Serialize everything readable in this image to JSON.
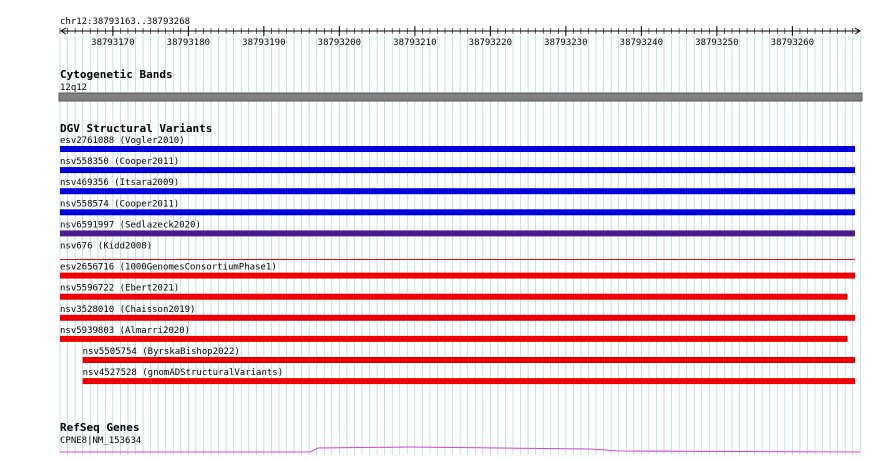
{
  "locus": "chr12:38793163..38793268",
  "ruler": {
    "ticks": [
      38793170,
      38793180,
      38793190,
      38793200,
      38793210,
      38793220,
      38793230,
      38793240,
      38793250,
      38793260
    ]
  },
  "tracks": {
    "cytoband": {
      "title": "Cytogenetic Bands",
      "band": "12q12",
      "color": "#808080"
    },
    "dgv": {
      "title": "DGV Structural Variants",
      "features": [
        {
          "label": "esv2761088 (Vogler2010)",
          "color": "#0000dd",
          "start": 38793163,
          "end": 38793268
        },
        {
          "label": "nsv558350 (Cooper2011)",
          "color": "#0000dd",
          "start": 38793163,
          "end": 38793268
        },
        {
          "label": "nsv469356 (Itsara2009)",
          "color": "#0000dd",
          "start": 38793163,
          "end": 38793268
        },
        {
          "label": "nsv558574 (Cooper2011)",
          "color": "#0000dd",
          "start": 38793163,
          "end": 38793268
        },
        {
          "label": "nsv6591997 (Sedlazeck2020)",
          "color": "#4b1a8f",
          "start": 38793163,
          "end": 38793268
        },
        {
          "label": "nsv676 (Kidd2008)",
          "color": "#ee0000",
          "start": 38793163,
          "end": 38793268,
          "thin": true
        },
        {
          "label": "esv2656716 (1000GenomesConsortiumPhase1)",
          "color": "#ee0000",
          "start": 38793163,
          "end": 38793268
        },
        {
          "label": "nsv5596722 (Ebert2021)",
          "color": "#ee0000",
          "start": 38793163,
          "end": 38793267
        },
        {
          "label": "nsv3528010 (Chaisson2019)",
          "color": "#ee0000",
          "start": 38793163,
          "end": 38793268
        },
        {
          "label": "nsv5939803 (Almarri2020)",
          "color": "#ee0000",
          "start": 38793163,
          "end": 38793267
        },
        {
          "label": "nsv5505754 (ByrskaBishop2022)",
          "color": "#ee0000",
          "start": 38793166,
          "end": 38793268
        },
        {
          "label": "nsv4527528 (gnomADStructuralVariants)",
          "color": "#ee0000",
          "start": 38793166,
          "end": 38793268
        }
      ]
    },
    "refseq": {
      "title": "RefSeq Genes",
      "gene": "CPNE8|NM_153634",
      "color": "#cc44cc"
    }
  }
}
